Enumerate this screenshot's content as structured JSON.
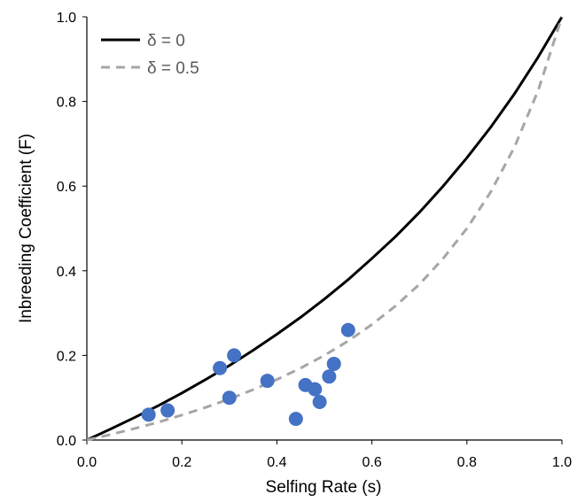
{
  "chart_data": {
    "type": "line",
    "xlabel": "Selfing Rate (s)",
    "ylabel": "Inbreeding Coefficient (F)",
    "xlim": [
      0.0,
      1.0
    ],
    "ylim": [
      0.0,
      1.0
    ],
    "xticks": [
      "0.0",
      "0.2",
      "0.4",
      "0.6",
      "0.8",
      "1.0"
    ],
    "yticks": [
      "0.0",
      "0.2",
      "0.4",
      "0.6",
      "0.8",
      "1.0"
    ],
    "grid": false,
    "legend_position": "top-left",
    "series": [
      {
        "name": "δ = 0",
        "kind": "line",
        "style": "solid",
        "color": "#000000",
        "x": [
          0.0,
          0.05,
          0.1,
          0.15,
          0.2,
          0.25,
          0.3,
          0.35,
          0.4,
          0.45,
          0.5,
          0.55,
          0.6,
          0.65,
          0.7,
          0.75,
          0.8,
          0.85,
          0.9,
          0.95,
          1.0
        ],
        "y": [
          0.0,
          0.026,
          0.053,
          0.081,
          0.111,
          0.143,
          0.176,
          0.212,
          0.25,
          0.29,
          0.333,
          0.379,
          0.429,
          0.481,
          0.538,
          0.6,
          0.667,
          0.739,
          0.818,
          0.905,
          1.0
        ]
      },
      {
        "name": "δ = 0.5",
        "kind": "line",
        "style": "dashed",
        "color": "#a6a6a6",
        "x": [
          0.0,
          0.05,
          0.1,
          0.15,
          0.2,
          0.25,
          0.3,
          0.35,
          0.4,
          0.45,
          0.5,
          0.55,
          0.6,
          0.65,
          0.7,
          0.75,
          0.8,
          0.85,
          0.9,
          0.95,
          1.0
        ],
        "y": [
          0.0,
          0.013,
          0.027,
          0.042,
          0.059,
          0.077,
          0.097,
          0.119,
          0.143,
          0.17,
          0.2,
          0.234,
          0.273,
          0.317,
          0.368,
          0.429,
          0.5,
          0.586,
          0.692,
          0.826,
          1.0
        ]
      },
      {
        "kind": "scatter",
        "color": "#4472c4",
        "x": [
          0.13,
          0.17,
          0.28,
          0.3,
          0.31,
          0.38,
          0.44,
          0.46,
          0.48,
          0.49,
          0.51,
          0.52,
          0.55
        ],
        "y": [
          0.06,
          0.07,
          0.17,
          0.1,
          0.2,
          0.14,
          0.05,
          0.13,
          0.12,
          0.09,
          0.15,
          0.18,
          0.26
        ]
      }
    ]
  }
}
